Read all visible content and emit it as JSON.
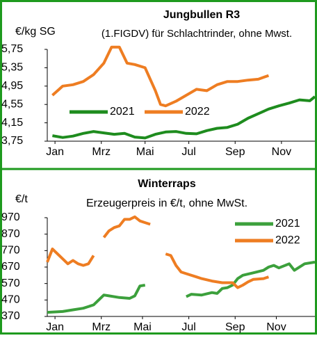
{
  "chart_data": [
    {
      "type": "line",
      "title": "Jungbullen R3",
      "y_label": "€/kg SG",
      "subtitle": "(1.FIGDV) für Schlachtrinder, ohne Mwst.",
      "xlim": [
        0,
        52
      ],
      "xticks": [
        {
          "value": 1.5,
          "label": "Jan"
        },
        {
          "value": 10.5,
          "label": "Mrz"
        },
        {
          "value": 19,
          "label": "Mai"
        },
        {
          "value": 27.5,
          "label": "Jul"
        },
        {
          "value": 36.5,
          "label": "Sep"
        },
        {
          "value": 45.5,
          "label": "Nov"
        }
      ],
      "ylim": [
        3.75,
        5.75
      ],
      "yticks": [
        {
          "value": 5.75,
          "label": "5,75"
        },
        {
          "value": 5.35,
          "label": "5,35"
        },
        {
          "value": 4.95,
          "label": "4,95"
        },
        {
          "value": 4.55,
          "label": "4,55"
        },
        {
          "value": 4.15,
          "label": "4,15"
        },
        {
          "value": 3.75,
          "label": "3,75"
        }
      ],
      "legend": "lower center",
      "series": [
        {
          "name": "2021",
          "color": "#1e8c1e",
          "x": [
            1,
            3,
            5,
            7,
            9,
            11,
            13,
            15,
            17,
            19,
            21,
            23,
            25,
            27,
            29,
            31,
            33,
            35,
            37,
            39,
            41,
            43,
            45,
            47,
            49,
            51,
            52
          ],
          "values": [
            3.87,
            3.83,
            3.86,
            3.92,
            3.96,
            3.93,
            3.9,
            3.92,
            3.84,
            3.82,
            3.9,
            3.95,
            3.96,
            3.92,
            3.91,
            3.98,
            4.03,
            4.05,
            4.12,
            4.25,
            4.35,
            4.45,
            4.52,
            4.58,
            4.65,
            4.63,
            4.72
          ]
        },
        {
          "name": "2022",
          "color": "#ee7d22",
          "x": [
            1,
            3,
            5,
            7,
            9,
            11,
            12.5,
            14,
            15.5,
            17,
            19,
            20,
            21,
            22,
            23,
            25,
            27,
            29,
            31,
            33,
            35,
            37,
            39,
            41,
            43
          ],
          "values": [
            4.75,
            4.95,
            4.98,
            5.05,
            5.2,
            5.45,
            5.8,
            5.8,
            5.45,
            5.42,
            5.35,
            5.1,
            4.85,
            4.55,
            4.52,
            4.62,
            4.75,
            4.88,
            4.85,
            4.98,
            5.05,
            5.05,
            5.08,
            5.1,
            5.18
          ]
        }
      ]
    },
    {
      "type": "line",
      "title": "Winterraps",
      "y_label": "€/t",
      "subtitle": "Erzeugerpreis in  €/t, ohne MwSt.",
      "xlim": [
        0,
        52
      ],
      "xticks": [
        {
          "value": 1.5,
          "label": "Jan"
        },
        {
          "value": 10.5,
          "label": "Mrz"
        },
        {
          "value": 18.5,
          "label": "Mai"
        },
        {
          "value": 27.5,
          "label": "Jul"
        },
        {
          "value": 36.5,
          "label": "Sep"
        },
        {
          "value": 44.5,
          "label": "Nov"
        }
      ],
      "ylim": [
        370,
        970
      ],
      "yticks": [
        970,
        870,
        770,
        670,
        570,
        470,
        370
      ],
      "legend": "upper right",
      "series": [
        {
          "name": "2021",
          "color": "#3ca03c",
          "x": [
            0,
            3,
            5,
            7,
            9,
            11,
            12,
            14,
            16,
            17,
            18,
            19,
            23,
            27,
            28,
            30,
            32,
            33,
            34,
            35,
            36,
            37,
            38,
            40,
            42,
            43,
            44,
            45,
            47,
            48,
            50,
            52
          ],
          "values": [
            395,
            400,
            410,
            420,
            440,
            500,
            495,
            485,
            480,
            495,
            555,
            560,
            null,
            490,
            505,
            500,
            515,
            510,
            540,
            545,
            560,
            600,
            620,
            635,
            650,
            670,
            680,
            665,
            690,
            650,
            690,
            700
          ]
        },
        {
          "name": "2022",
          "color": "#ee7d22",
          "x": [
            0,
            1,
            3,
            4,
            5,
            6,
            7,
            8,
            9,
            10,
            11,
            12,
            13,
            14,
            15,
            16,
            17,
            18,
            19,
            20,
            22,
            23,
            24,
            25,
            26,
            27,
            29,
            30,
            32,
            34,
            36,
            37,
            38,
            39,
            40,
            42,
            43
          ],
          "values": [
            700,
            780,
            720,
            690,
            710,
            690,
            680,
            690,
            740,
            null,
            850,
            890,
            910,
            920,
            960,
            960,
            975,
            950,
            940,
            930,
            null,
            750,
            740,
            680,
            640,
            630,
            610,
            600,
            585,
            575,
            575,
            545,
            560,
            580,
            595,
            600,
            610
          ]
        }
      ]
    }
  ]
}
